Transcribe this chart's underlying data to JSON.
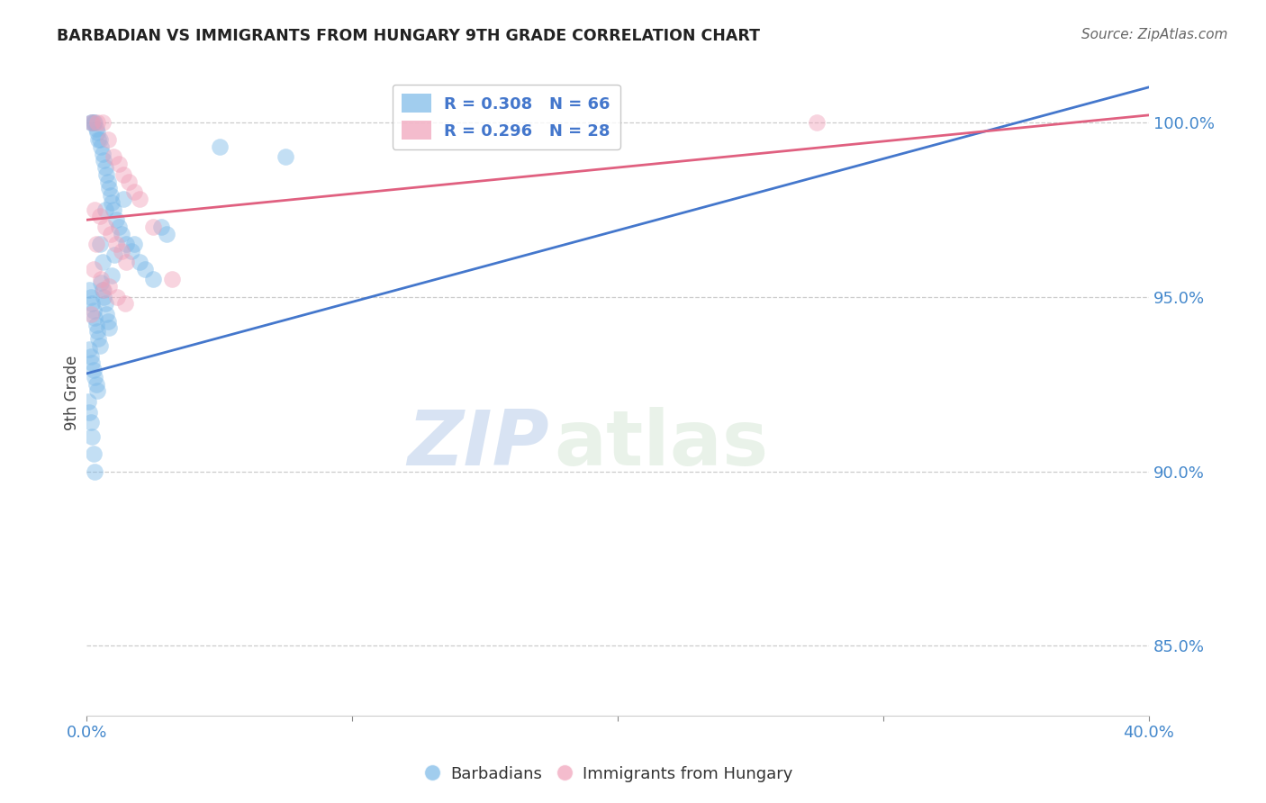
{
  "title": "BARBADIAN VS IMMIGRANTS FROM HUNGARY 9TH GRADE CORRELATION CHART",
  "source": "Source: ZipAtlas.com",
  "ylabel": "9th Grade",
  "xlim": [
    0.0,
    40.0
  ],
  "ylim": [
    83.0,
    101.5
  ],
  "blue_label": "Barbadians",
  "pink_label": "Immigrants from Hungary",
  "blue_R": "R = 0.308",
  "blue_N": "N = 66",
  "pink_R": "R = 0.296",
  "pink_N": "N = 28",
  "blue_color": "#7ab8e8",
  "pink_color": "#f0a0b8",
  "blue_line_color": "#4477cc",
  "pink_line_color": "#e06080",
  "watermark_zip": "ZIP",
  "watermark_atlas": "atlas",
  "grid_color": "#cccccc",
  "blue_points_x": [
    0.15,
    0.2,
    0.25,
    0.3,
    0.35,
    0.4,
    0.45,
    0.5,
    0.55,
    0.6,
    0.65,
    0.7,
    0.75,
    0.8,
    0.85,
    0.9,
    0.95,
    1.0,
    1.1,
    1.2,
    1.3,
    1.5,
    1.7,
    2.0,
    2.2,
    2.5,
    0.1,
    0.15,
    0.2,
    0.25,
    0.3,
    0.35,
    0.4,
    0.45,
    0.5,
    0.55,
    0.6,
    0.65,
    0.7,
    0.75,
    0.8,
    0.85,
    0.95,
    1.05,
    0.1,
    0.15,
    0.2,
    0.25,
    0.3,
    0.35,
    0.4,
    0.05,
    0.1,
    0.15,
    0.2,
    0.25,
    0.3,
    2.8,
    3.0,
    5.0,
    7.5,
    0.5,
    0.6,
    0.7,
    1.4,
    1.8
  ],
  "blue_points_y": [
    100.0,
    100.0,
    100.0,
    100.0,
    99.8,
    99.7,
    99.5,
    99.5,
    99.3,
    99.1,
    98.9,
    98.7,
    98.5,
    98.3,
    98.1,
    97.9,
    97.7,
    97.5,
    97.2,
    97.0,
    96.8,
    96.5,
    96.3,
    96.0,
    95.8,
    95.5,
    95.2,
    95.0,
    94.8,
    94.6,
    94.4,
    94.2,
    94.0,
    93.8,
    93.6,
    95.4,
    95.2,
    95.0,
    94.8,
    94.5,
    94.3,
    94.1,
    95.6,
    96.2,
    93.5,
    93.3,
    93.1,
    92.9,
    92.7,
    92.5,
    92.3,
    92.0,
    91.7,
    91.4,
    91.0,
    90.5,
    90.0,
    97.0,
    96.8,
    99.3,
    99.0,
    96.5,
    96.0,
    97.5,
    97.8,
    96.5
  ],
  "pink_points_x": [
    0.2,
    0.4,
    0.6,
    0.8,
    1.0,
    1.2,
    1.4,
    1.6,
    1.8,
    2.0,
    0.3,
    0.5,
    0.7,
    0.9,
    1.1,
    1.3,
    1.5,
    0.25,
    0.55,
    0.85,
    1.15,
    1.45,
    2.5,
    3.2,
    0.15,
    0.35,
    0.65,
    27.5
  ],
  "pink_points_y": [
    100.0,
    100.0,
    100.0,
    99.5,
    99.0,
    98.8,
    98.5,
    98.3,
    98.0,
    97.8,
    97.5,
    97.3,
    97.0,
    96.8,
    96.5,
    96.3,
    96.0,
    95.8,
    95.5,
    95.3,
    95.0,
    94.8,
    97.0,
    95.5,
    94.5,
    96.5,
    95.2,
    100.0
  ],
  "blue_trendline": [
    0.0,
    40.0,
    92.8,
    101.0
  ],
  "pink_trendline": [
    0.0,
    40.0,
    97.2,
    100.2
  ]
}
